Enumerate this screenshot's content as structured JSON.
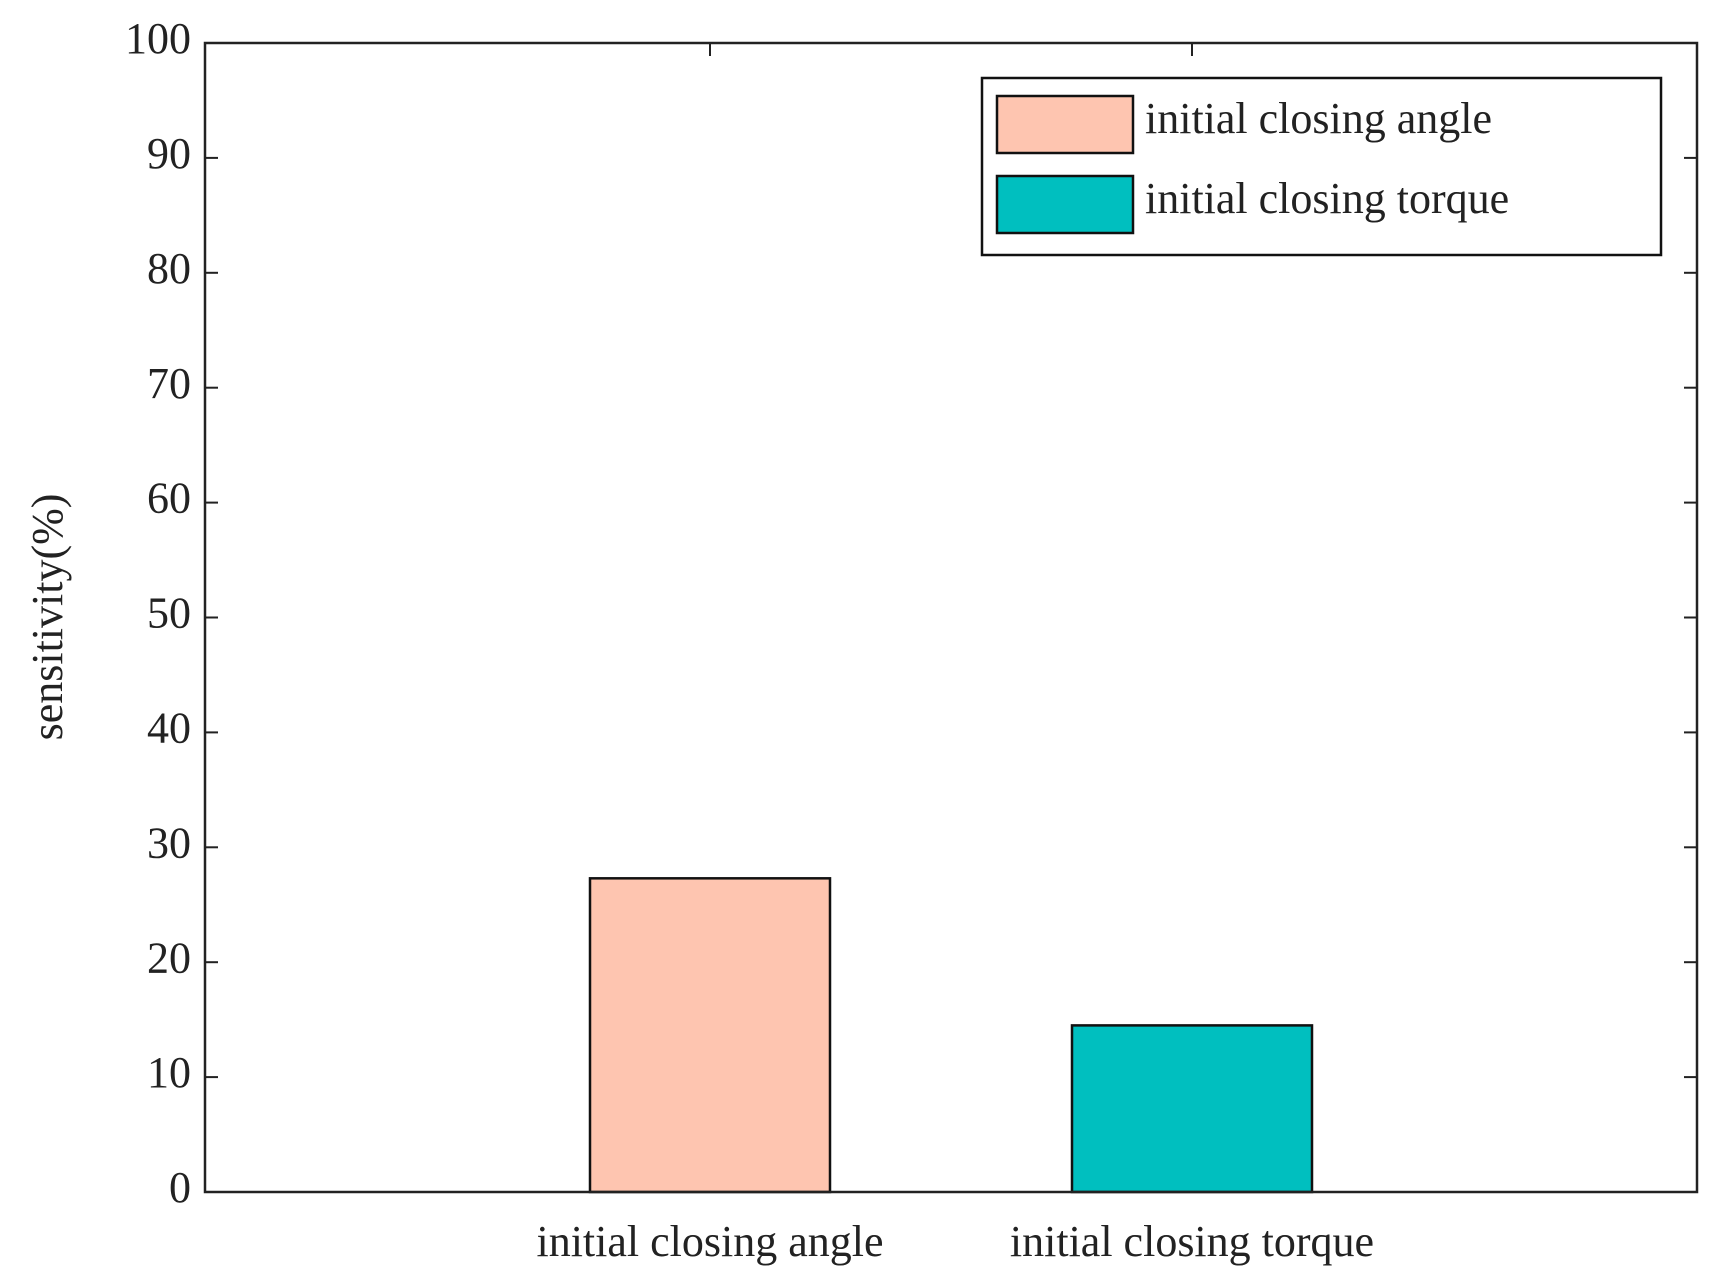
{
  "chart_data": {
    "type": "bar",
    "ylabel": "sensitivity(%)",
    "categories": [
      "initial closing angle",
      "initial closing torque"
    ],
    "series": [
      {
        "name": "initial closing angle",
        "color": "#fec5b0",
        "values": [
          27.3,
          null
        ]
      },
      {
        "name": "initial closing torque",
        "color": "#00bfbf",
        "values": [
          null,
          14.5
        ]
      }
    ],
    "ylim": [
      0,
      100
    ],
    "yticks": [
      0,
      10,
      20,
      30,
      40,
      50,
      60,
      70,
      80,
      90,
      100
    ],
    "legend": "top-right"
  }
}
